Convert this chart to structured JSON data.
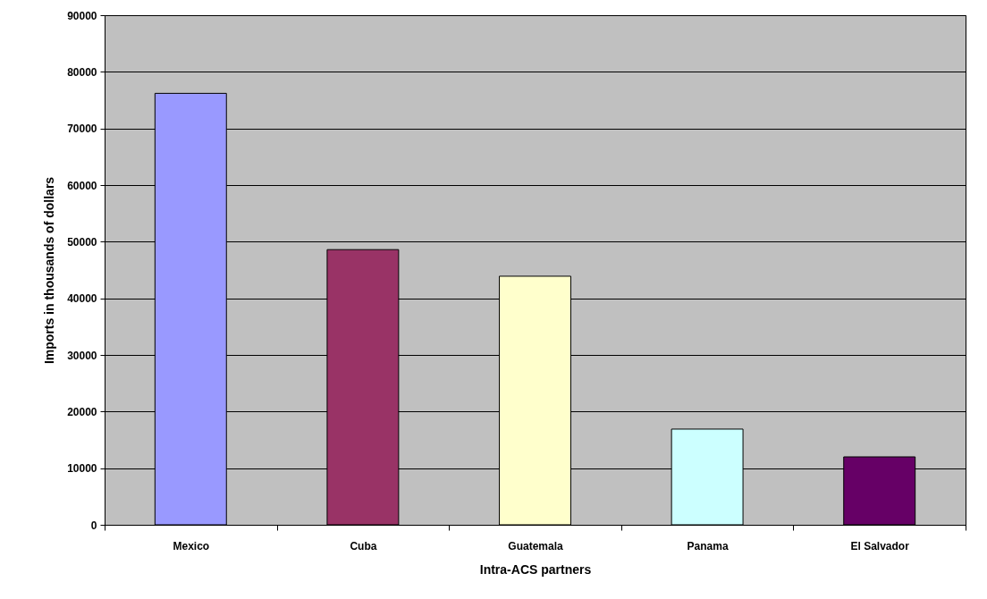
{
  "chart_data": {
    "type": "bar",
    "xlabel": "Intra-ACS partners",
    "ylabel": "Imports in thousands of dollars",
    "categories": [
      "Mexico",
      "Cuba",
      "Guatemala",
      "Panama",
      "El Salvador"
    ],
    "values": [
      76200,
      48600,
      43900,
      16900,
      12000
    ],
    "colors": [
      "#9999ff",
      "#993366",
      "#ffffcc",
      "#ccffff",
      "#660066"
    ],
    "ylim": [
      0,
      90000
    ],
    "yticks": [
      0,
      10000,
      20000,
      30000,
      40000,
      50000,
      60000,
      70000,
      80000,
      90000
    ],
    "grid": "y"
  }
}
